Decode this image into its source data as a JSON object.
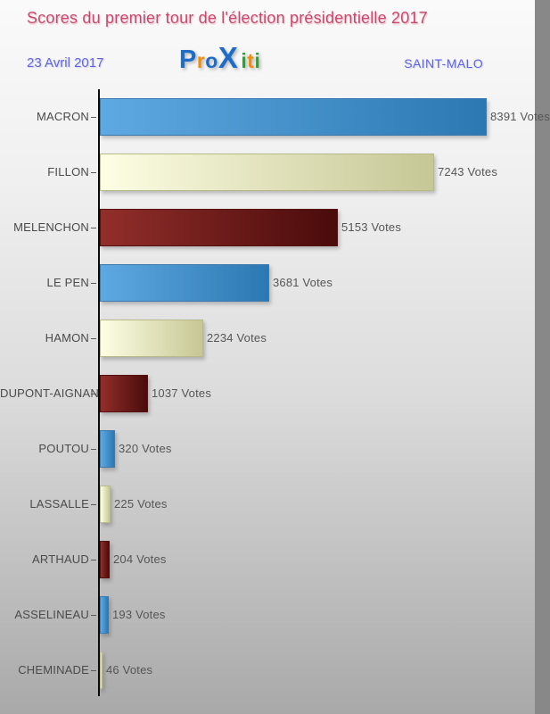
{
  "header": {
    "title": "Scores du premier tour de l'élection présidentielle 2017",
    "date": "23 Avril 2017",
    "city": "SAINT-MALO",
    "logo": {
      "text": "Proxiti",
      "letters": [
        {
          "ch": "P",
          "color": "#1e6bc8"
        },
        {
          "ch": "r",
          "color": "#ef8e0e"
        },
        {
          "ch": "o",
          "color": "#1e6bc8"
        },
        {
          "ch": "X",
          "color": "#1e6bc8"
        },
        {
          "ch": "i",
          "color": "#2f9e3b"
        },
        {
          "ch": "t",
          "color": "#ef8e0e"
        },
        {
          "ch": "i",
          "color": "#2f9e3b"
        }
      ]
    }
  },
  "colors": {
    "title": "#c9496e",
    "subtitle": "#6164de",
    "category_label": "#4a4a4a",
    "value_label": "#555555",
    "axis": "#0a0a0a"
  },
  "chart_data": {
    "type": "bar",
    "orientation": "horizontal",
    "title": "Scores du premier tour de l'élection présidentielle 2017",
    "subtitle_left": "23 Avril 2017",
    "subtitle_right": "SAINT-MALO",
    "categories": [
      "MACRON",
      "FILLON",
      "MELENCHON",
      "LE PEN",
      "HAMON",
      "DUPONT-AIGNAN",
      "POUTOU",
      "LASSALLE",
      "ARTHAUD",
      "ASSELINEAU",
      "CHEMINADE"
    ],
    "values": [
      8391,
      7243,
      5153,
      3681,
      2234,
      1037,
      320,
      225,
      204,
      193,
      46
    ],
    "value_labels": [
      "8391 Votes",
      "7243 Votes",
      "5153 Votes",
      "3681 Votes",
      "2234 Votes",
      "1037 Votes",
      "320 Votes",
      "225 Votes",
      "204 Votes",
      "193 Votes",
      "46 Votes"
    ],
    "unit": "Votes",
    "xlim": [
      0,
      8391
    ],
    "grid": false,
    "legend": false,
    "bar_colors": [
      "blue",
      "cream",
      "darkred",
      "blue",
      "cream",
      "darkred",
      "blue",
      "cream",
      "darkred",
      "blue",
      "cream"
    ],
    "palette": {
      "blue": {
        "from": "#5fa9e2",
        "to": "#2b78b2",
        "border": "#3a7aae"
      },
      "cream": {
        "from": "#fdfee4",
        "to": "#c6c795",
        "border": "#b9ba8a"
      },
      "darkred": {
        "from": "#922e2a",
        "to": "#4a0b0b",
        "border": "#571010"
      }
    }
  }
}
